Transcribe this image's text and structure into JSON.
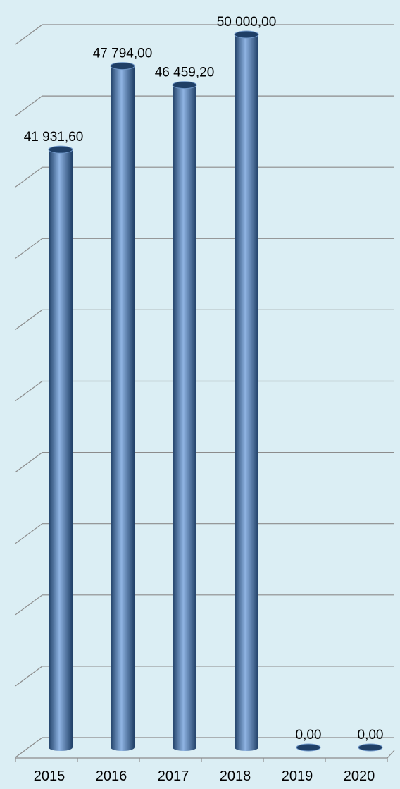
{
  "chart_data": {
    "type": "bar",
    "categories": [
      "2015",
      "2016",
      "2017",
      "2018",
      "2019",
      "2020"
    ],
    "values": [
      41931.6,
      47794.0,
      46459.2,
      50000.0,
      0.0,
      0.0
    ],
    "data_labels": [
      "41 931,60",
      "47 794,00",
      "46 459,20",
      "50 000,00",
      "0,00",
      "0,00"
    ],
    "title": "",
    "xlabel": "",
    "ylabel": "",
    "ylim": [
      0,
      50000
    ],
    "gridlines": 10,
    "grid": true,
    "legend": "none",
    "style": "3d-cylinder",
    "colors": {
      "background": "#dbeef4",
      "bar": "#4f81bd",
      "bar_dark": "#1f3f66",
      "bar_light": "#8fb4e3",
      "grid": "#8c8c8c",
      "text": "#000000"
    }
  }
}
